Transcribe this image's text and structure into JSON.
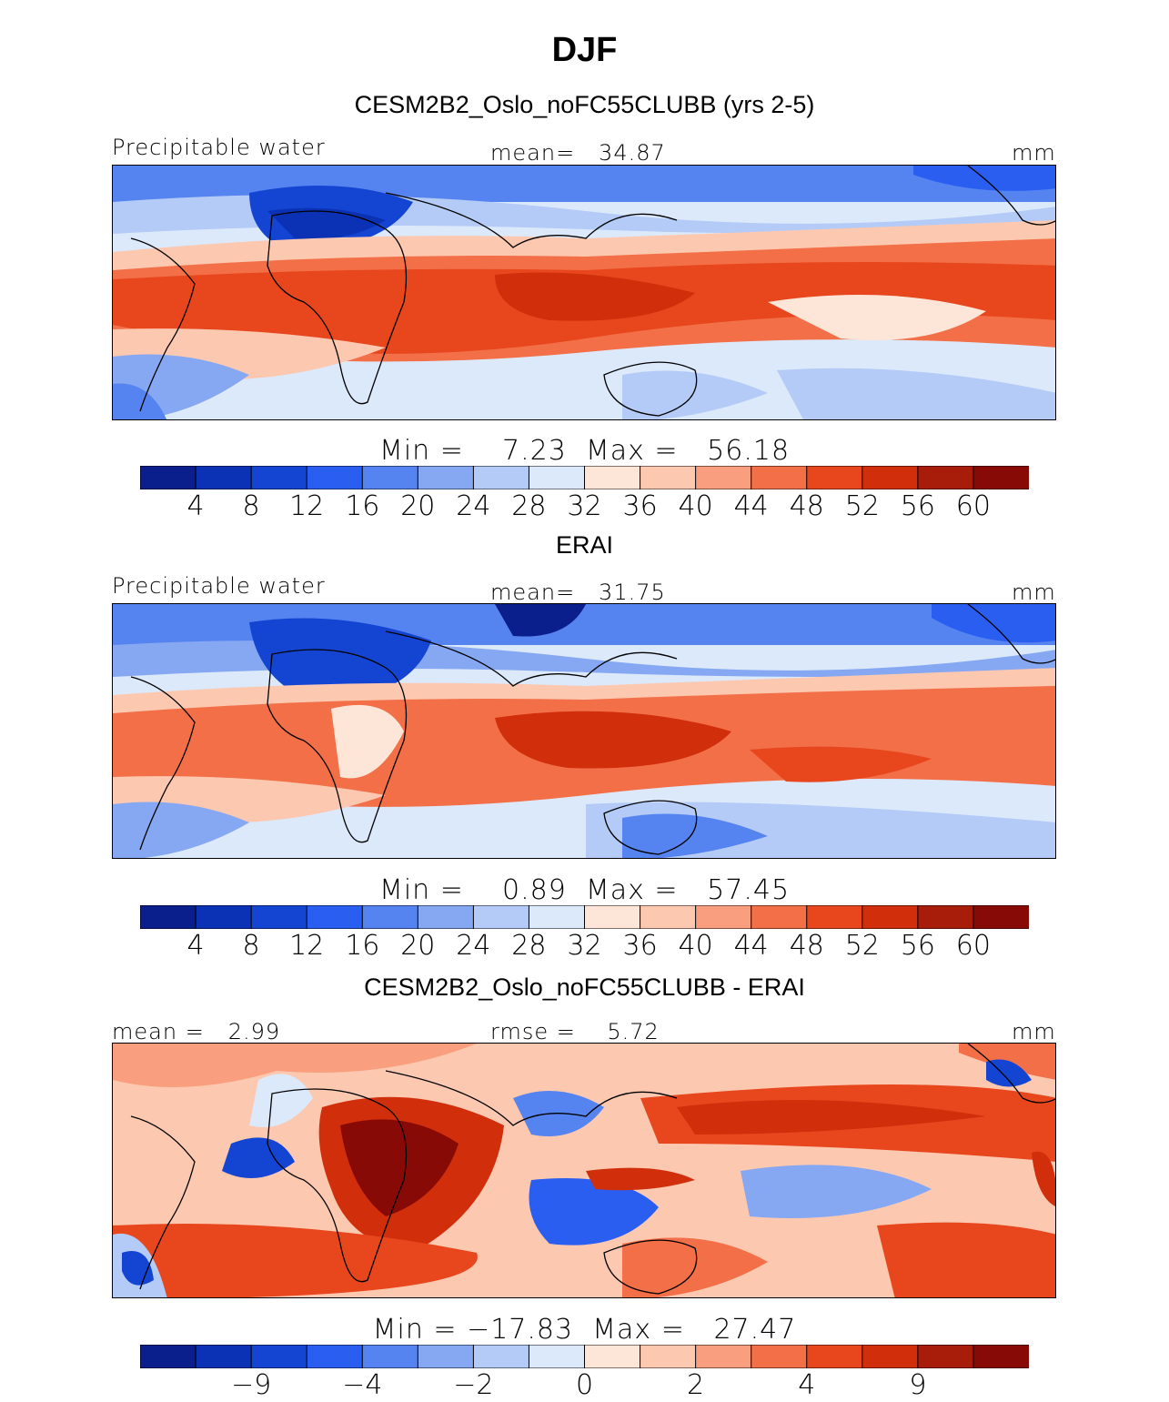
{
  "figure": {
    "title": "DJF",
    "unit_label": "mm",
    "field_label": "Precipitable water"
  },
  "panels": [
    {
      "title": "CESM2B2_Oslo_noFC55CLUBB (yrs 2-5)",
      "left_label": "Precipitable water",
      "center_label": "mean=   34.87",
      "right_label": "mm",
      "minmax": "Min =    7.23  Max =   56.18",
      "min": 7.23,
      "max": 56.18,
      "mean": 34.87
    },
    {
      "title": "ERAI",
      "left_label": "Precipitable water",
      "center_label": "mean=   31.75",
      "right_label": "mm",
      "minmax": "Min =    0.89  Max =   57.45",
      "min": 0.89,
      "max": 57.45,
      "mean": 31.75
    },
    {
      "title": "CESM2B2_Oslo_noFC55CLUBB - ERAI",
      "left_label": "mean =   2.99",
      "center_label": "rmse =    5.72",
      "right_label": "mm",
      "minmax": "Min = −17.83  Max =   27.47",
      "min": -17.83,
      "max": 27.47,
      "mean": 2.99,
      "rmse": 5.72
    }
  ],
  "colorbar": {
    "colors": [
      "#0a1e8c",
      "#0b32b4",
      "#1445d2",
      "#2a5ef0",
      "#5584f0",
      "#86a8f2",
      "#b4cbf7",
      "#dce9fb",
      "#fde6d8",
      "#fcc8b0",
      "#f99e7e",
      "#f26f48",
      "#e8471e",
      "#d12f0c",
      "#a81c0a",
      "#880a06"
    ],
    "abs_ticks": [
      "4",
      "8",
      "12",
      "16",
      "20",
      "24",
      "28",
      "32",
      "36",
      "40",
      "44",
      "48",
      "52",
      "56",
      "60"
    ],
    "diff_ticks": [
      "−9",
      "−4",
      "−2",
      "0",
      "2",
      "4",
      "9"
    ]
  }
}
